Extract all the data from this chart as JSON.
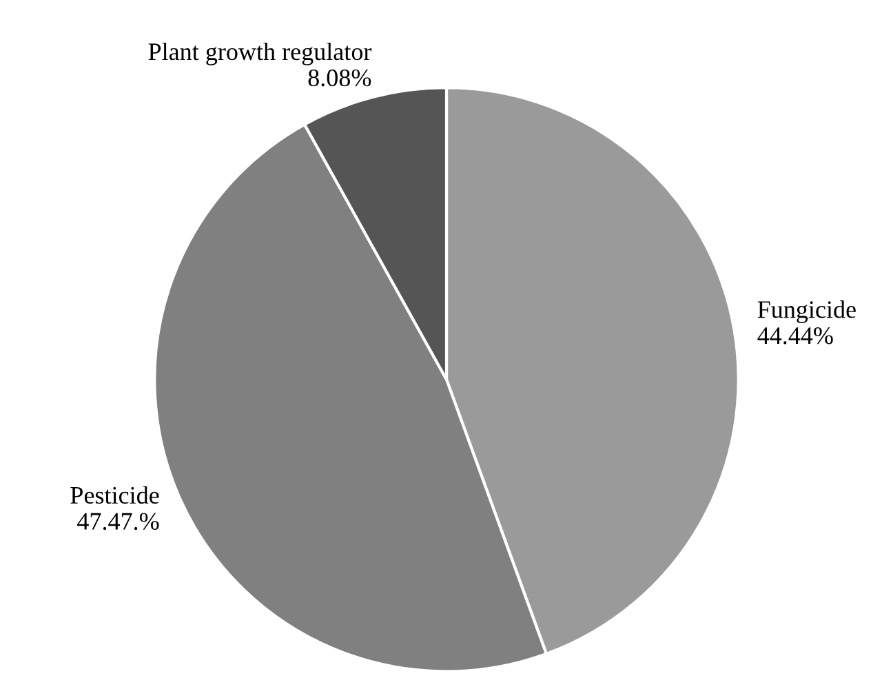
{
  "chart_data": {
    "type": "pie",
    "categories": [
      "Fungicide",
      "Pesticide",
      "Plant growth regulator"
    ],
    "values": [
      44.44,
      47.47,
      8.08
    ],
    "value_labels": [
      "44.44%",
      "47.47.%",
      "8.08%"
    ],
    "colors": [
      "#9a9a9a",
      "#808080",
      "#555555"
    ]
  }
}
